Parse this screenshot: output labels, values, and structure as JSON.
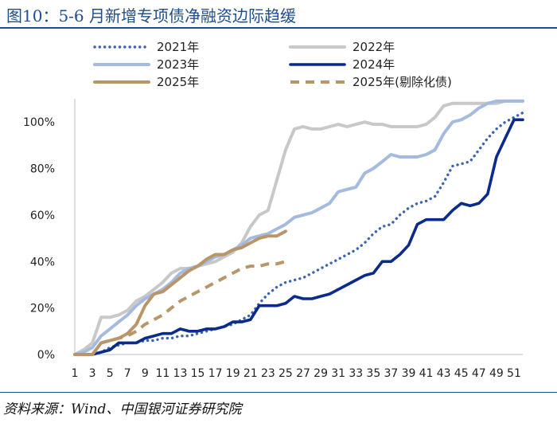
{
  "figure": {
    "title": "图10：5-6 月新增专项债净融资边际趋缓",
    "source": "资料来源：Wind、中国银河证券研究院"
  },
  "chart_data": {
    "type": "line",
    "title": "图10：5-6 月新增专项债净融资边际趋缓",
    "xlabel": "",
    "ylabel": "",
    "x_ticks": [
      1,
      3,
      5,
      7,
      9,
      11,
      13,
      15,
      17,
      19,
      21,
      23,
      25,
      27,
      29,
      31,
      33,
      35,
      37,
      39,
      41,
      43,
      45,
      47,
      49,
      51
    ],
    "xlim": [
      1,
      52
    ],
    "ylim": [
      0,
      1.1
    ],
    "y_ticks": [
      0,
      0.2,
      0.4,
      0.6,
      0.8,
      1.0
    ],
    "y_tick_labels": [
      "0%",
      "20%",
      "40%",
      "60%",
      "80%",
      "100%"
    ],
    "legend_position": "top, two columns",
    "series": [
      {
        "name": "2021年",
        "style": "dotted",
        "color": "#3b64ad",
        "x": [
          1,
          2,
          3,
          4,
          5,
          6,
          7,
          8,
          9,
          10,
          11,
          12,
          13,
          14,
          15,
          16,
          17,
          18,
          19,
          20,
          21,
          22,
          23,
          24,
          25,
          26,
          27,
          28,
          29,
          30,
          31,
          32,
          33,
          34,
          35,
          36,
          37,
          38,
          39,
          40,
          41,
          42,
          43,
          44,
          45,
          46,
          47,
          48,
          49,
          50,
          51,
          52
        ],
        "values": [
          0,
          0,
          0,
          0.01,
          0.03,
          0.04,
          0.05,
          0.05,
          0.06,
          0.06,
          0.07,
          0.07,
          0.08,
          0.08,
          0.09,
          0.1,
          0.11,
          0.12,
          0.13,
          0.15,
          0.17,
          0.22,
          0.26,
          0.29,
          0.31,
          0.32,
          0.33,
          0.35,
          0.37,
          0.39,
          0.41,
          0.43,
          0.45,
          0.48,
          0.52,
          0.55,
          0.56,
          0.6,
          0.63,
          0.65,
          0.66,
          0.68,
          0.74,
          0.81,
          0.82,
          0.83,
          0.88,
          0.93,
          0.97,
          1.0,
          1.02,
          1.04
        ]
      },
      {
        "name": "2022年",
        "style": "solid",
        "color": "#c8c8c8",
        "x": [
          1,
          2,
          3,
          4,
          5,
          6,
          7,
          8,
          9,
          10,
          11,
          12,
          13,
          14,
          15,
          16,
          17,
          18,
          19,
          20,
          21,
          22,
          23,
          24,
          25,
          26,
          27,
          28,
          29,
          30,
          31,
          32,
          33,
          34,
          35,
          36,
          37,
          38,
          39,
          40,
          41,
          42,
          43,
          44,
          45,
          46,
          47,
          48,
          49,
          50,
          51,
          52
        ],
        "values": [
          0,
          0.02,
          0.05,
          0.16,
          0.16,
          0.17,
          0.19,
          0.23,
          0.25,
          0.28,
          0.31,
          0.35,
          0.37,
          0.37,
          0.38,
          0.39,
          0.4,
          0.42,
          0.44,
          0.48,
          0.55,
          0.6,
          0.62,
          0.75,
          0.88,
          0.97,
          0.98,
          0.97,
          0.97,
          0.98,
          0.99,
          0.98,
          0.99,
          1.0,
          0.99,
          0.99,
          0.98,
          0.98,
          0.98,
          0.98,
          0.99,
          1.02,
          1.07,
          1.08,
          1.08,
          1.08,
          1.08,
          1.08,
          1.08,
          1.09,
          1.09,
          1.09
        ]
      },
      {
        "name": "2023年",
        "style": "solid",
        "color": "#a5badf",
        "x": [
          1,
          2,
          3,
          4,
          5,
          6,
          7,
          8,
          9,
          10,
          11,
          12,
          13,
          14,
          15,
          16,
          17,
          18,
          19,
          20,
          21,
          22,
          23,
          24,
          25,
          26,
          27,
          28,
          29,
          30,
          31,
          32,
          33,
          34,
          35,
          36,
          37,
          38,
          39,
          40,
          41,
          42,
          43,
          44,
          45,
          46,
          47,
          48,
          49,
          50,
          51,
          52
        ],
        "values": [
          0,
          0.01,
          0.03,
          0.08,
          0.11,
          0.14,
          0.17,
          0.21,
          0.24,
          0.26,
          0.28,
          0.31,
          0.35,
          0.37,
          0.38,
          0.4,
          0.42,
          0.43,
          0.45,
          0.47,
          0.5,
          0.51,
          0.52,
          0.54,
          0.56,
          0.59,
          0.6,
          0.61,
          0.63,
          0.65,
          0.7,
          0.71,
          0.72,
          0.78,
          0.8,
          0.83,
          0.86,
          0.85,
          0.85,
          0.85,
          0.86,
          0.88,
          0.95,
          1.0,
          1.01,
          1.03,
          1.06,
          1.08,
          1.09,
          1.09,
          1.09,
          1.09
        ]
      },
      {
        "name": "2024年",
        "style": "solid",
        "color": "#0a2a8c",
        "x": [
          1,
          2,
          3,
          4,
          5,
          6,
          7,
          8,
          9,
          10,
          11,
          12,
          13,
          14,
          15,
          16,
          17,
          18,
          19,
          20,
          21,
          22,
          23,
          24,
          25,
          26,
          27,
          28,
          29,
          30,
          31,
          32,
          33,
          34,
          35,
          36,
          37,
          38,
          39,
          40,
          41,
          42,
          43,
          44,
          45,
          46,
          47,
          48,
          49,
          50,
          51,
          52
        ],
        "values": [
          0,
          0,
          0,
          0.01,
          0.02,
          0.05,
          0.05,
          0.05,
          0.07,
          0.08,
          0.09,
          0.09,
          0.11,
          0.1,
          0.1,
          0.11,
          0.11,
          0.12,
          0.14,
          0.14,
          0.15,
          0.21,
          0.21,
          0.21,
          0.22,
          0.25,
          0.24,
          0.24,
          0.25,
          0.26,
          0.28,
          0.3,
          0.32,
          0.34,
          0.35,
          0.4,
          0.4,
          0.43,
          0.47,
          0.56,
          0.58,
          0.58,
          0.58,
          0.62,
          0.65,
          0.64,
          0.65,
          0.69,
          0.85,
          0.93,
          1.01,
          1.01
        ]
      },
      {
        "name": "2025年",
        "style": "solid",
        "color": "#b9966a",
        "x": [
          1,
          2,
          3,
          4,
          5,
          6,
          7,
          8,
          9,
          10,
          11,
          12,
          13,
          14,
          15,
          16,
          17,
          18,
          19,
          20,
          21,
          22,
          23,
          24,
          25
        ],
        "values": [
          0,
          0,
          0,
          0.05,
          0.06,
          0.07,
          0.09,
          0.13,
          0.21,
          0.26,
          0.27,
          0.3,
          0.33,
          0.36,
          0.38,
          0.41,
          0.43,
          0.43,
          0.45,
          0.46,
          0.48,
          0.5,
          0.51,
          0.51,
          0.53
        ]
      },
      {
        "name": "2025年(剔除化债)",
        "style": "dashed",
        "color": "#b9966a",
        "x": [
          1,
          2,
          3,
          4,
          5,
          6,
          7,
          8,
          9,
          10,
          11,
          12,
          13,
          14,
          15,
          16,
          17,
          18,
          19,
          20,
          21,
          22,
          23,
          24,
          25
        ],
        "values": [
          0,
          0,
          0,
          0.05,
          0.06,
          0.07,
          0.08,
          0.1,
          0.13,
          0.15,
          0.17,
          0.2,
          0.23,
          0.25,
          0.27,
          0.29,
          0.31,
          0.33,
          0.35,
          0.37,
          0.38,
          0.38,
          0.39,
          0.39,
          0.4
        ]
      }
    ]
  }
}
